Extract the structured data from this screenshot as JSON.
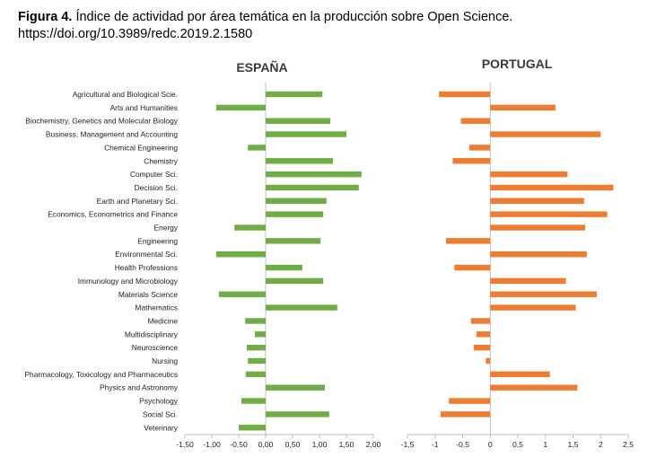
{
  "caption": {
    "label": "Figura 4.",
    "text": " Índice de actividad por área temática en la producción sobre Open Science.",
    "doi": "https://doi.org/10.3989/redc.2019.2.1580"
  },
  "chart_data": [
    {
      "type": "bar",
      "orientation": "horizontal",
      "title": "ESPAÑA",
      "color": "#70AD47",
      "xlim": [
        -1.5,
        2.0
      ],
      "xticks": [
        "-1,50",
        "-1,00",
        "-0,50",
        "0,00",
        "0,50",
        "1,00",
        "1,50",
        "2,00"
      ],
      "categories": [
        "Agricultural and Biological Scie.",
        "Arts and Humanities",
        "Biochemistry, Genetics and Molecular Biology",
        "Business, Management and Accounting",
        "Chemical Engineering",
        "Chemistry",
        "Computer Sci.",
        "Decision Sci.",
        "Earth and Planetary Sci.",
        "Economics, Econometrics and Finance",
        "Energy",
        "Engineering",
        "Environmental Sci.",
        "Health Professions",
        "Immunology and Microbiology",
        "Materials Science",
        "Mathematics",
        "Medicine",
        "Multidisciplinary",
        "Neuroscience",
        "Nursing",
        "Pharmacology, Toxicology and Pharmaceutics",
        "Physics and Astronomy",
        "Psychology",
        "Social Sci.",
        "Veterinary"
      ],
      "values": [
        1.05,
        -0.92,
        1.2,
        1.5,
        -0.33,
        1.25,
        1.78,
        1.73,
        1.13,
        1.07,
        -0.58,
        1.02,
        -0.92,
        0.68,
        1.07,
        -0.87,
        1.33,
        -0.38,
        -0.2,
        -0.35,
        -0.33,
        -0.37,
        1.1,
        -0.45,
        1.18,
        -0.5
      ]
    },
    {
      "type": "bar",
      "orientation": "horizontal",
      "title": "PORTUGAL",
      "color": "#ED7D31",
      "xlim": [
        -1.5,
        2.5
      ],
      "xticks": [
        "-1,5",
        "-1",
        "-0,5",
        "0",
        "0,5",
        "1",
        "1,5",
        "2",
        "2,5"
      ],
      "categories": [
        "Agricultural and Biological Scie.",
        "Arts and Humanities",
        "Biochemistry, Genetics and Molecular Biology",
        "Business, Management and Accounting",
        "Chemical Engineering",
        "Chemistry",
        "Computer Sci.",
        "Decision Sci.",
        "Earth and Planetary Sci.",
        "Economics, Econometrics and Finance",
        "Energy",
        "Engineering",
        "Environmental Sci.",
        "Health Professions",
        "Immunology and Microbiology",
        "Materials Science",
        "Mathematics",
        "Medicine",
        "Multidisciplinary",
        "Neuroscience",
        "Nursing",
        "Pharmacology, Toxicology and Pharmaceutics",
        "Physics and Astronomy",
        "Psychology",
        "Social Sci.",
        "Veterinary"
      ],
      "values": [
        -0.93,
        1.18,
        -0.53,
        2.0,
        -0.38,
        -0.68,
        1.4,
        2.23,
        1.7,
        2.12,
        1.72,
        -0.8,
        1.75,
        -0.65,
        1.37,
        1.93,
        1.55,
        -0.35,
        -0.25,
        -0.3,
        -0.08,
        1.08,
        1.58,
        -0.75,
        -0.9,
        0.0
      ]
    }
  ]
}
